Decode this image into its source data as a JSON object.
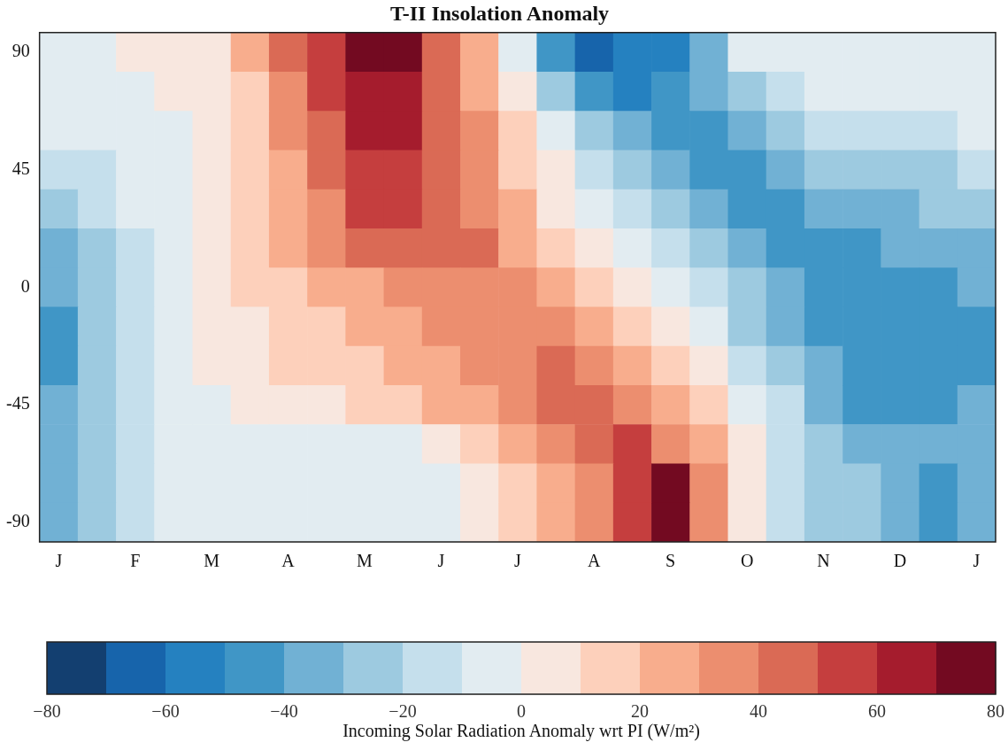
{
  "chart_data": {
    "type": "heatmap",
    "title": "T-II Insolation Anomaly",
    "clabel": "Incoming Solar Radiation Anomaly wrt PI (W/m²)",
    "categories": [
      "J",
      null,
      "F",
      null,
      "M",
      null,
      "A",
      null,
      "M",
      null,
      "J",
      null,
      "J",
      null,
      "A",
      null,
      "S",
      null,
      "O",
      null,
      "N",
      null,
      "D",
      null,
      "J"
    ],
    "y_categories": [
      "90",
      null,
      null,
      "45",
      null,
      null,
      "0",
      null,
      null,
      "-45",
      null,
      null,
      "-90"
    ],
    "clim": [
      -80,
      80
    ],
    "cticks": [
      -80,
      -60,
      -40,
      -20,
      0,
      20,
      40,
      60,
      80
    ],
    "cells": [
      [
        -5,
        -5,
        5,
        5,
        5,
        25,
        45,
        55,
        75,
        75,
        45,
        25,
        -5,
        -45,
        -65,
        -55,
        -55,
        -35,
        -5,
        -5,
        -5,
        -5,
        -5,
        -5,
        -5
      ],
      [
        -5,
        -5,
        -5,
        5,
        5,
        15,
        35,
        55,
        65,
        65,
        45,
        25,
        5,
        -25,
        -45,
        -55,
        -45,
        -35,
        -25,
        -15,
        -5,
        -5,
        -5,
        -5,
        -5
      ],
      [
        -5,
        -5,
        -5,
        -5,
        5,
        15,
        35,
        45,
        65,
        65,
        45,
        35,
        15,
        -5,
        -25,
        -35,
        -45,
        -45,
        -35,
        -25,
        -15,
        -15,
        -15,
        -15,
        -5
      ],
      [
        -15,
        -15,
        -5,
        -5,
        5,
        15,
        25,
        45,
        55,
        55,
        45,
        35,
        15,
        5,
        -15,
        -25,
        -35,
        -45,
        -45,
        -35,
        -25,
        -25,
        -25,
        -25,
        -15
      ],
      [
        -25,
        -15,
        -5,
        -5,
        5,
        15,
        25,
        35,
        55,
        55,
        45,
        35,
        25,
        5,
        -5,
        -15,
        -25,
        -35,
        -45,
        -45,
        -35,
        -35,
        -35,
        -25,
        -25
      ],
      [
        -35,
        -25,
        -15,
        -5,
        5,
        15,
        25,
        35,
        45,
        45,
        45,
        45,
        25,
        15,
        5,
        -5,
        -15,
        -25,
        -35,
        -45,
        -45,
        -45,
        -35,
        -35,
        -35
      ],
      [
        -35,
        -25,
        -15,
        -5,
        5,
        15,
        15,
        25,
        25,
        35,
        35,
        35,
        35,
        25,
        15,
        5,
        -5,
        -15,
        -25,
        -35,
        -45,
        -45,
        -45,
        -45,
        -35
      ],
      [
        -45,
        -25,
        -15,
        -5,
        5,
        5,
        15,
        15,
        25,
        25,
        35,
        35,
        35,
        35,
        25,
        15,
        5,
        -5,
        -25,
        -35,
        -45,
        -45,
        -45,
        -45,
        -45
      ],
      [
        -45,
        -25,
        -15,
        -5,
        5,
        5,
        15,
        15,
        15,
        25,
        25,
        35,
        35,
        45,
        35,
        25,
        15,
        5,
        -15,
        -25,
        -35,
        -45,
        -45,
        -45,
        -45
      ],
      [
        -35,
        -25,
        -15,
        -5,
        -5,
        5,
        5,
        5,
        15,
        15,
        25,
        25,
        35,
        45,
        45,
        35,
        25,
        15,
        -5,
        -15,
        -35,
        -45,
        -45,
        -45,
        -35
      ],
      [
        -35,
        -25,
        -15,
        -5,
        -5,
        -5,
        -5,
        -5,
        -5,
        -5,
        5,
        15,
        25,
        35,
        45,
        55,
        35,
        25,
        5,
        -15,
        -25,
        -35,
        -35,
        -35,
        -35
      ],
      [
        -35,
        -25,
        -15,
        -5,
        -5,
        -5,
        -5,
        -5,
        -5,
        -5,
        -5,
        5,
        15,
        25,
        35,
        55,
        75,
        35,
        5,
        -15,
        -25,
        -25,
        -35,
        -45,
        -35
      ],
      [
        -35,
        -25,
        -15,
        -5,
        -5,
        -5,
        -5,
        -5,
        -5,
        -5,
        -5,
        5,
        15,
        25,
        35,
        55,
        75,
        35,
        5,
        -15,
        -25,
        -25,
        -35,
        -45,
        -35
      ]
    ]
  }
}
